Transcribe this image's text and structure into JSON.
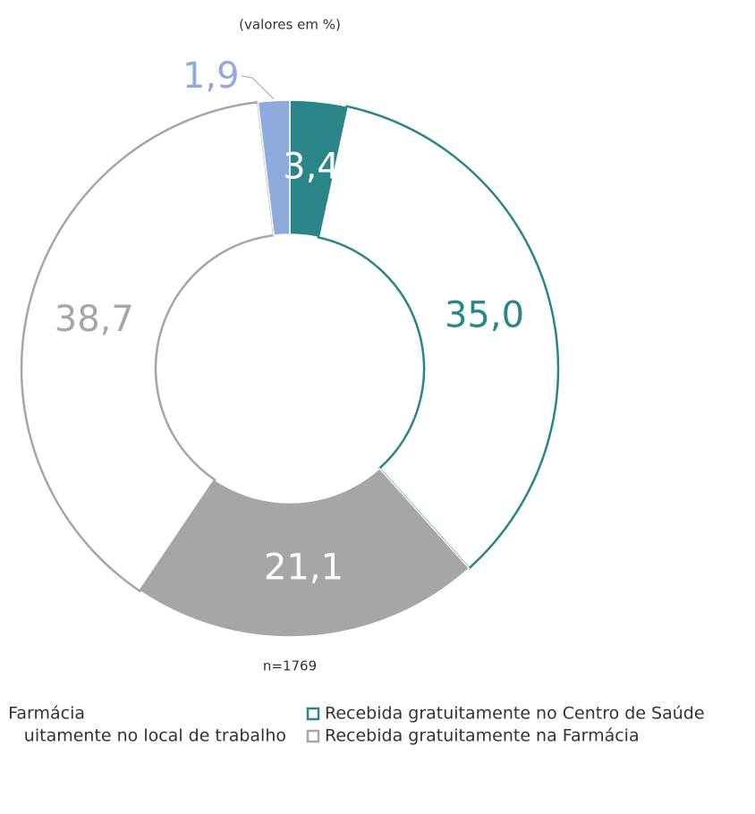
{
  "chart_data": {
    "type": "donut",
    "subtitle": "(valores em %)",
    "note": "n=1769",
    "values": [
      3.4,
      35.0,
      21.1,
      38.7,
      1.9
    ],
    "value_labels": [
      "3,4",
      "35,0",
      "21,1",
      "38,7",
      "1,9"
    ],
    "colors": [
      "#2a8588",
      "#2a8588",
      "#a6a6a6",
      "#a6a6a6",
      "#8faadc"
    ],
    "filled": [
      true,
      false,
      true,
      false,
      true
    ],
    "label_colors": [
      "#ffffff",
      "#2a8588",
      "#ffffff",
      "#a6a6a6",
      "#8faadc"
    ],
    "legend": [
      {
        "label": "Farmácia"
      },
      {
        "label": "Recebida gratuitamente no Centro de Saúde",
        "color": "#2a8588"
      },
      {
        "label": "uitamente no local de trabalho"
      },
      {
        "label": "Recebida gratuitamente na Farmácia",
        "color": "#a6a6a6"
      }
    ]
  }
}
